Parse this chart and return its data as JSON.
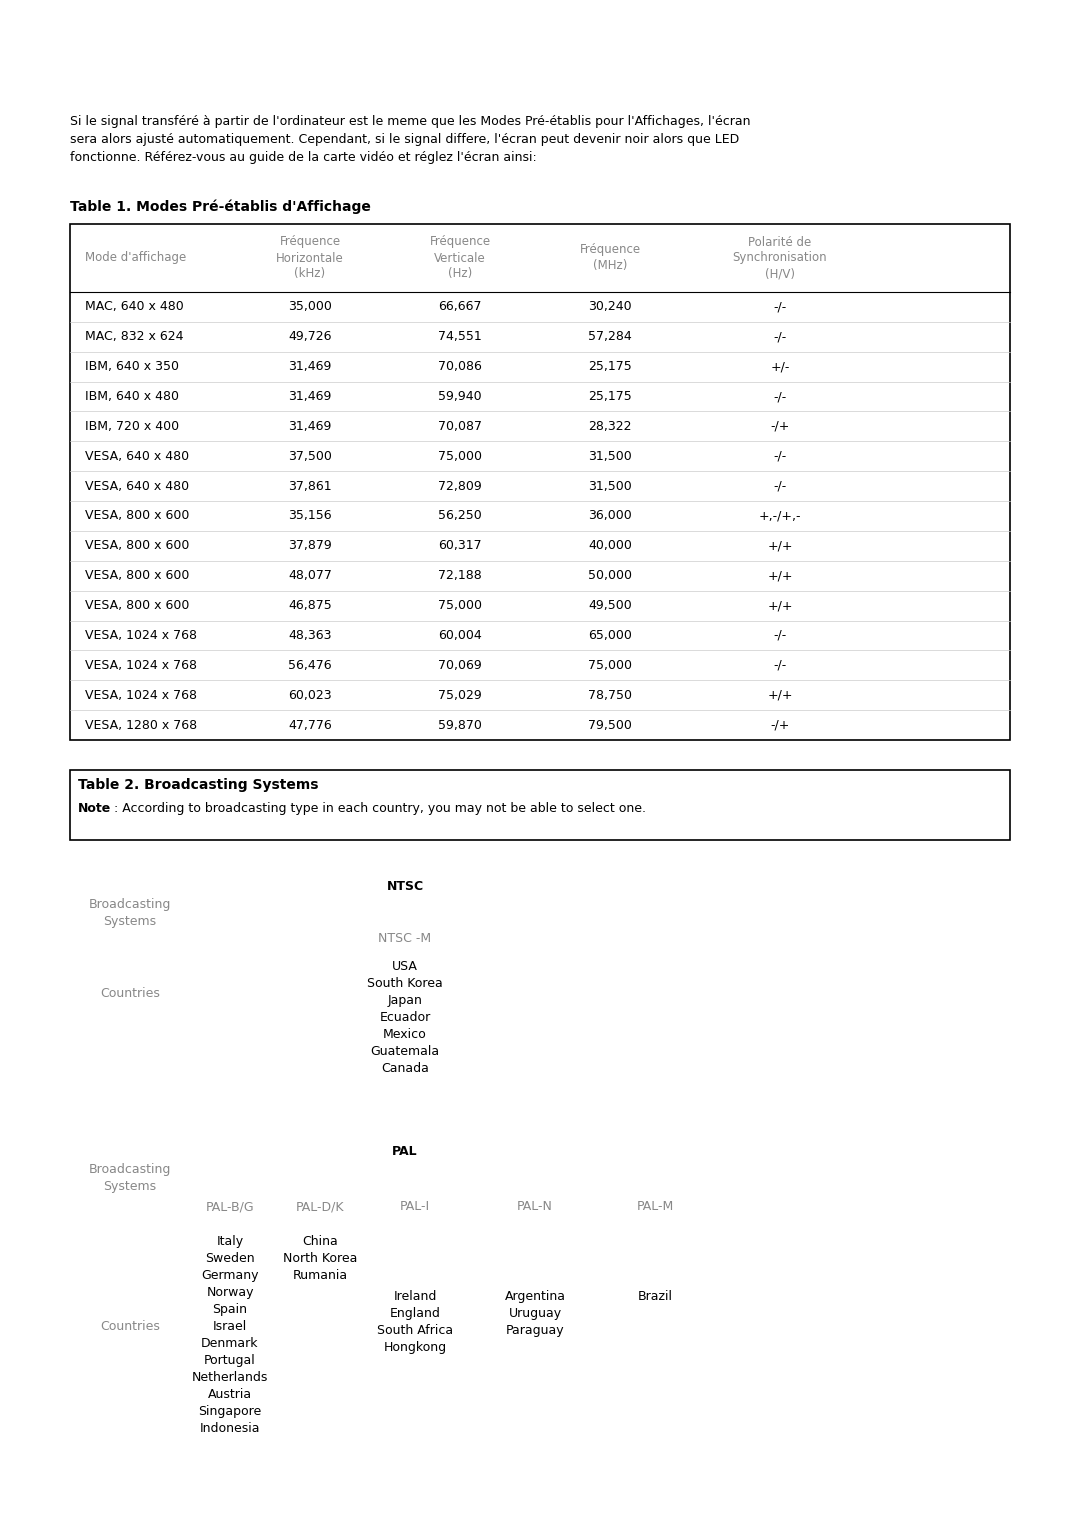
{
  "bg_color": "#ffffff",
  "page_width": 10.8,
  "page_height": 15.28,
  "dpi": 100,
  "intro_text_line1": "Si le signal transféré à partir de l'ordinateur est le meme que les Modes Pré-établis pour l'Affichages, l'écran",
  "intro_text_line2": "sera alors ajusté automatiquement. Cependant, si le signal differe, l'écran peut devenir noir alors que LED",
  "intro_text_line3": "fonctionne. Référez-vous au guide de la carte vidéo et réglez l'écran ainsi:",
  "table1_title": "Table 1. Modes Pré-établis d'Affichage",
  "table1_headers": [
    "Mode d'affichage",
    "Fréquence\nHorizontale\n(kHz)",
    "Fréquence\nVerticale\n(Hz)",
    "Fréquence\n(MHz)",
    "Polarité de\nSynchronisation\n(H/V)"
  ],
  "table1_rows": [
    [
      "MAC, 640 x 480",
      "35,000",
      "66,667",
      "30,240",
      "-/-"
    ],
    [
      "MAC, 832 x 624",
      "49,726",
      "74,551",
      "57,284",
      "-/-"
    ],
    [
      "IBM, 640 x 350",
      "31,469",
      "70,086",
      "25,175",
      "+/-"
    ],
    [
      "IBM, 640 x 480",
      "31,469",
      "59,940",
      "25,175",
      "-/-"
    ],
    [
      "IBM, 720 x 400",
      "31,469",
      "70,087",
      "28,322",
      "-/+"
    ],
    [
      "VESA, 640 x 480",
      "37,500",
      "75,000",
      "31,500",
      "-/-"
    ],
    [
      "VESA, 640 x 480",
      "37,861",
      "72,809",
      "31,500",
      "-/-"
    ],
    [
      "VESA, 800 x 600",
      "35,156",
      "56,250",
      "36,000",
      "+,-/+,-"
    ],
    [
      "VESA, 800 x 600",
      "37,879",
      "60,317",
      "40,000",
      "+/+"
    ],
    [
      "VESA, 800 x 600",
      "48,077",
      "72,188",
      "50,000",
      "+/+"
    ],
    [
      "VESA, 800 x 600",
      "46,875",
      "75,000",
      "49,500",
      "+/+"
    ],
    [
      "VESA, 1024 x 768",
      "48,363",
      "60,004",
      "65,000",
      "-/-"
    ],
    [
      "VESA, 1024 x 768",
      "56,476",
      "70,069",
      "75,000",
      "-/-"
    ],
    [
      "VESA, 1024 x 768",
      "60,023",
      "75,029",
      "78,750",
      "+/+"
    ],
    [
      "VESA, 1280 x 768",
      "47,776",
      "59,870",
      "79,500",
      "-/+"
    ]
  ],
  "table2_title": "Table 2. Broadcasting Systems",
  "table2_note_bold": "Note",
  "table2_note_rest": " : According to broadcasting type in each country, you may not be able to select one.",
  "ntsc_label": "NTSC",
  "ntsc_m_label": "NTSC -M",
  "ntsc_countries": "USA\nSouth Korea\nJapan\nEcuador\nMexico\nGuatemala\nCanada",
  "pal_label": "PAL",
  "pal_subsystems": [
    "PAL-B/G",
    "PAL-D/K",
    "PAL-I",
    "PAL-N",
    "PAL-M"
  ],
  "pal_bg_countries": "Italy\nSweden\nGermany\nNorway\nSpain\nIsrael\nDenmark\nPortugal\nNetherlands\nAustria\nSingapore\nIndonesia",
  "pal_dk_countries": "China\nNorth Korea\nRumania",
  "pal_i_countries": "Ireland\nEngland\nSouth Africa\nHongkong",
  "pal_n_countries": "Argentina\nUruguay\nParaguay",
  "pal_m_countries": "Brazil",
  "header_color": "#888888",
  "label_color": "#888888",
  "text_color": "#000000",
  "border_color": "#000000",
  "font_size_intro": 9.0,
  "font_size_table_title": 10.0,
  "font_size_table_header": 8.5,
  "font_size_table_data": 9.0,
  "font_size_section": 9.0
}
